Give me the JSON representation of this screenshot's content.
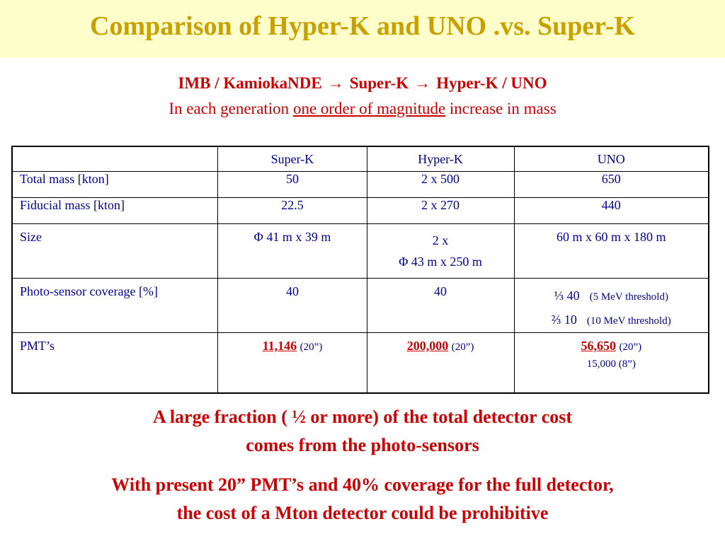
{
  "slide": {
    "title": "Comparison of Hyper-K and UNO .vs. Super-K",
    "subtitle_line1": {
      "part1": "IMB / KamiokaNDE",
      "arrow": "→",
      "part2": "Super-K",
      "part3": "Hyper-K / UNO"
    },
    "subtitle_line2": {
      "pre": "In each generation",
      "underlined": "one order of magnitude",
      "post": "increase in mass"
    },
    "colors": {
      "title": "#c8a000",
      "title_bg": "#ffffcc",
      "red": "#cc0000",
      "table_text": "#000099"
    }
  },
  "table": {
    "headers": [
      "",
      "Super-K",
      "Hyper-K",
      "UNO"
    ],
    "total_mass": {
      "label": "Total mass [kton]",
      "superk": "50",
      "hyperk": "2 x 500",
      "uno": "650"
    },
    "fiducial_mass": {
      "label": "Fiducial mass [kton]",
      "superk": "22.5",
      "hyperk": "2 x 270",
      "uno": "440"
    },
    "size": {
      "label": "Size",
      "superk": "Φ 41 m x 39 m",
      "hyperk_line1": "2 x",
      "hyperk_line2": "Φ 43 m x 250 m",
      "uno": "60 m x 60 m x 180 m"
    },
    "coverage": {
      "label": "Photo-sensor coverage [%]",
      "superk": "40",
      "hyperk": "40",
      "uno_line1_value": "⅓  40",
      "uno_line1_note": "(5 MeV  threshold)",
      "uno_line2_value": "⅔  10",
      "uno_line2_note": "(10 MeV  threshold)"
    },
    "pmts": {
      "label": "PMT’s",
      "superk_count": "11,146",
      "superk_size": "(20”)",
      "hyperk_count": "200,000",
      "hyperk_size": "(20”)",
      "uno_count": "56,650",
      "uno_size": "(20”)",
      "uno_line2": "15,000  (8”)"
    }
  },
  "conclusions": {
    "c1_line1": "A large fraction ( ½ or more) of the total detector cost",
    "c1_line2": "comes from the photo-sensors",
    "c2_line1": "With present 20” PMT’s and 40% coverage for the full detector,",
    "c2_line2": "the cost of a Mton detector could be prohibitive"
  }
}
